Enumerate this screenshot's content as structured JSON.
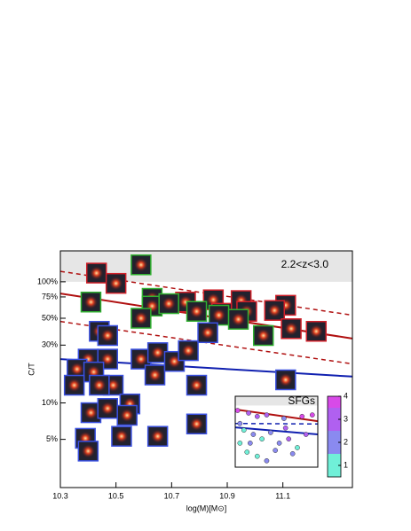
{
  "chart_data": [
    {
      "type": "scatter",
      "annotation": "2.2<z<3.0",
      "x_label": "log(M)[M⊙]",
      "y_label": "C/T",
      "xlim": [
        10.3,
        11.35
      ],
      "ylim": [
        2,
        180
      ],
      "log_y": true,
      "xticks": [
        10.3,
        10.5,
        10.7,
        10.9,
        11.1
      ],
      "yticks": [
        {
          "value": 100,
          "label": "100%"
        },
        {
          "value": 75,
          "label": "75%"
        },
        {
          "value": 50,
          "label": "50%"
        },
        {
          "value": 30,
          "label": "30%"
        },
        {
          "value": 10,
          "label": "10%"
        },
        {
          "value": 5,
          "label": "5%"
        }
      ],
      "shaded_band": {
        "from": 100,
        "to": 180,
        "color": "#e6e6e6"
      },
      "series": [
        {
          "color": "#d0202a",
          "x": [
            10.43,
            10.5,
            10.75,
            10.85,
            10.95,
            11.11,
            10.88,
            10.97,
            11.07,
            11.13,
            11.22
          ],
          "values": [
            118,
            97,
            68,
            71,
            70,
            64,
            55,
            57,
            58,
            41,
            39
          ]
        },
        {
          "color": "#30b030",
          "x": [
            10.59,
            10.41,
            10.63,
            10.63,
            10.59,
            10.79,
            10.87,
            10.94,
            11.03,
            10.69
          ],
          "values": [
            138,
            68,
            73,
            63,
            50,
            57,
            53,
            49,
            36,
            66
          ]
        },
        {
          "color": "#3a50e0",
          "x": [
            10.44,
            10.47,
            10.4,
            10.47,
            10.36,
            10.42,
            10.35,
            10.49,
            10.41,
            10.55,
            10.47,
            10.59,
            10.65,
            10.64,
            10.71,
            10.76,
            10.79,
            10.83,
            11.11,
            10.79,
            10.52,
            10.65,
            10.39,
            10.4,
            10.54,
            10.44
          ],
          "values": [
            39,
            36,
            23,
            23,
            19,
            18,
            14,
            14,
            8.3,
            9.8,
            9,
            23,
            26,
            17,
            22,
            27,
            14,
            38,
            15.5,
            6.7,
            5.3,
            5.3,
            5.1,
            4,
            7.9,
            14
          ]
        }
      ],
      "lines": [
        {
          "color": "#b01010",
          "dashed": false,
          "x": [
            10.3,
            11.35
          ],
          "values": [
            80,
            34
          ]
        },
        {
          "color": "#b01010",
          "dashed": true,
          "x": [
            10.3,
            11.35
          ],
          "values": [
            122,
            53
          ]
        },
        {
          "color": "#b01010",
          "dashed": true,
          "x": [
            10.3,
            11.35
          ],
          "values": [
            47,
            21
          ]
        },
        {
          "color": "#1020b0",
          "dashed": false,
          "x": [
            10.3,
            11.35
          ],
          "values": [
            23,
            16.5
          ]
        }
      ]
    },
    {
      "type": "inset-scatter",
      "title": "SFGs",
      "xlim": [
        10.3,
        11.35
      ],
      "ylim": [
        2,
        180
      ],
      "log_y": true,
      "shaded_band": {
        "from": 100,
        "to": 180,
        "color": "#e6e6e6"
      },
      "x": [
        10.33,
        10.47,
        10.58,
        10.7,
        10.92,
        11.15,
        11.28,
        10.36,
        10.41,
        10.53,
        10.64,
        10.75,
        10.86,
        10.98,
        11.09,
        11.2,
        10.36,
        10.45,
        10.58,
        10.7,
        10.81,
        11.03,
        10.49,
        10.94
      ],
      "values": [
        73,
        62,
        50,
        55,
        44,
        50,
        55,
        32,
        21,
        16,
        12,
        18,
        9.2,
        12,
        6.9,
        16,
        9.2,
        5.2,
        4,
        3,
        5.8,
        4.7,
        9.2,
        24
      ],
      "z": [
        3.5,
        3,
        2.5,
        3.2,
        2,
        3.8,
        3.6,
        1.5,
        1.2,
        1.8,
        1.3,
        2.2,
        1.6,
        2.6,
        1.4,
        2.8,
        1.1,
        1.3,
        1.2,
        1.5,
        1.9,
        2.1,
        2.4,
        3.1
      ],
      "colorbar": {
        "lim": [
          0.5,
          4
        ],
        "ticks": [
          1,
          2,
          3,
          4
        ],
        "colors": [
          "#70f0d8",
          "#8a8af0",
          "#b060f0",
          "#d84ae8"
        ]
      },
      "lines": [
        {
          "color": "#b01010",
          "dashed": false,
          "x": [
            10.3,
            11.35
          ],
          "values": [
            78,
            37
          ]
        },
        {
          "color": "#1020b0",
          "dashed": true,
          "x": [
            10.3,
            11.35
          ],
          "values": [
            32,
            31
          ]
        },
        {
          "color": "#1020b0",
          "dashed": false,
          "x": [
            10.3,
            11.35
          ],
          "values": [
            25,
            16
          ]
        }
      ]
    }
  ]
}
